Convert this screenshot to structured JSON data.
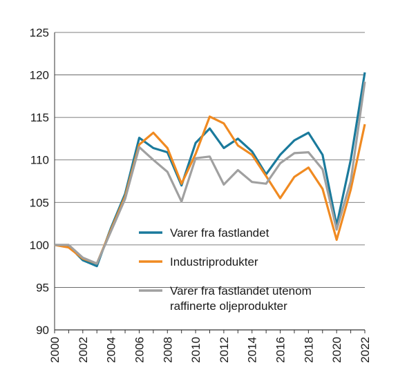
{
  "chart_data": {
    "type": "line",
    "title": "",
    "xlabel": "",
    "ylabel": "",
    "x": [
      2000,
      2001,
      2002,
      2003,
      2004,
      2005,
      2006,
      2007,
      2008,
      2009,
      2010,
      2011,
      2012,
      2013,
      2014,
      2015,
      2016,
      2017,
      2018,
      2019,
      2020,
      2021,
      2022
    ],
    "xticks": [
      "2000",
      "2002",
      "2004",
      "2006",
      "2008",
      "2010",
      "2012",
      "2014",
      "2016",
      "2018",
      "2020",
      "2022"
    ],
    "xlim": [
      2000,
      2022
    ],
    "ylim": [
      90,
      125
    ],
    "yticks": [
      "90",
      "95",
      "100",
      "105",
      "110",
      "115",
      "120",
      "125"
    ],
    "grid": "horizontal",
    "legend_position": "lower-center",
    "series": [
      {
        "name": "Varer fra fastlandet",
        "color": "#1a7a9c",
        "values": [
          100,
          99.9,
          98.2,
          97.5,
          102.0,
          106.0,
          112.6,
          111.4,
          110.9,
          107.0,
          112.0,
          113.7,
          111.4,
          112.5,
          111.0,
          108.3,
          110.6,
          112.3,
          113.2,
          110.6,
          102.3,
          110.0,
          120.3
        ]
      },
      {
        "name": "Industriprodukter",
        "color": "#f08a21",
        "values": [
          100,
          99.7,
          98.4,
          97.8,
          101.8,
          105.7,
          111.8,
          113.2,
          111.4,
          107.2,
          110.7,
          115.1,
          114.3,
          111.7,
          110.6,
          108.1,
          105.5,
          108.0,
          109.1,
          106.6,
          100.6,
          106.5,
          114.2
        ]
      },
      {
        "name": "Varer fra fastlandet utenom\nraffinerte oljeprodukter",
        "legend_lines": [
          "Varer fra fastlandet utenom",
          "raffinerte oljeprodukter"
        ],
        "color": "#a0a0a0",
        "values": [
          100,
          100.0,
          98.5,
          97.8,
          101.6,
          105.4,
          111.5,
          110.0,
          108.6,
          105.1,
          110.2,
          110.4,
          107.1,
          108.8,
          107.4,
          107.2,
          109.6,
          110.8,
          110.9,
          108.9,
          101.8,
          107.5,
          119.2
        ]
      }
    ]
  }
}
